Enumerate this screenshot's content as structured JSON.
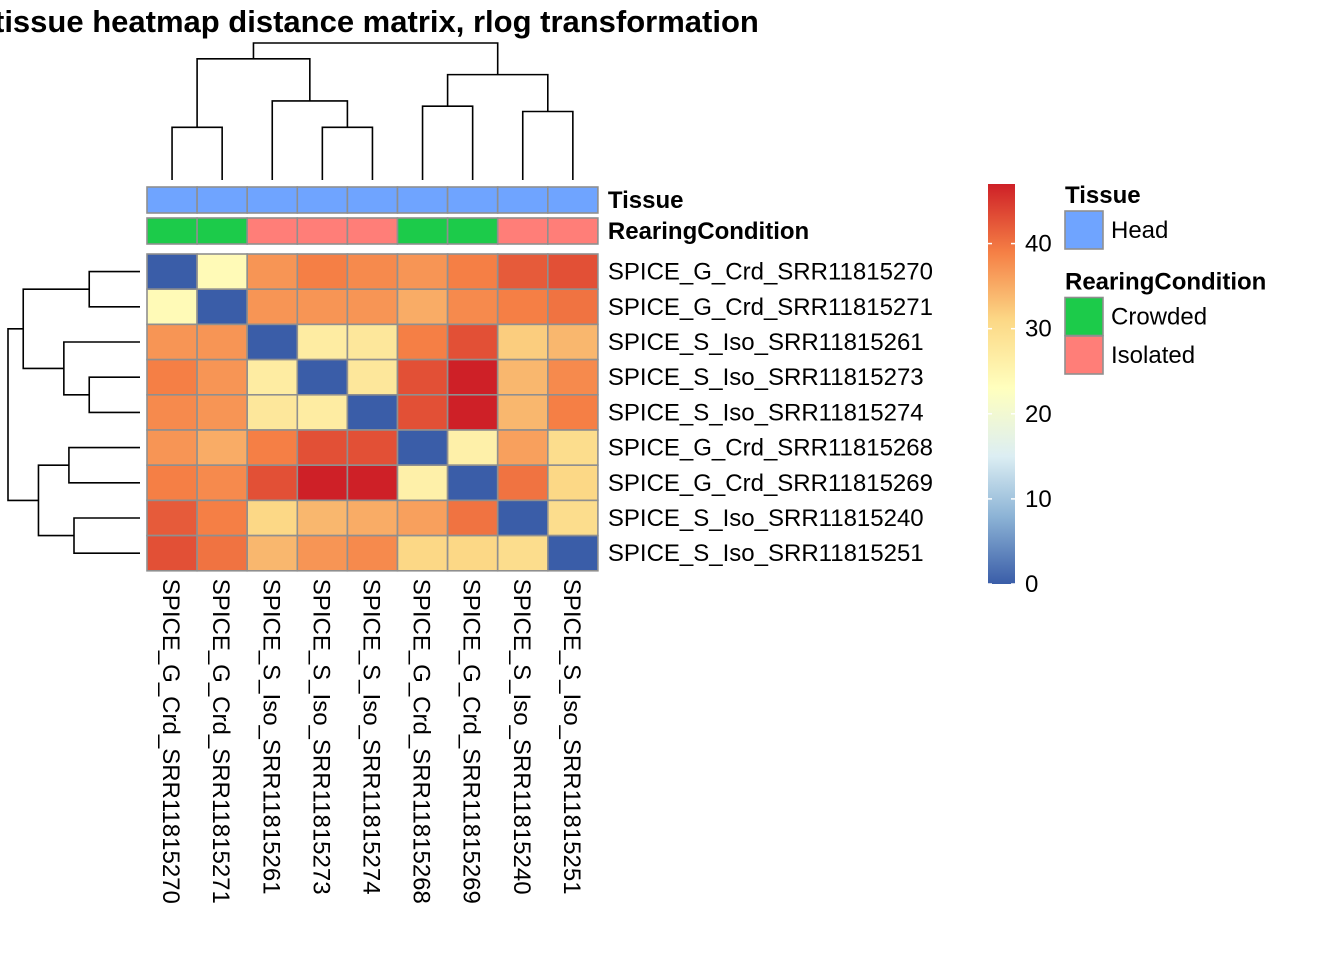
{
  "chart_data": {
    "type": "heatmap",
    "title": "tissue heatmap distance matrix, rlog transformation",
    "samples": [
      "SPICE_G_Crd_SRR11815270",
      "SPICE_G_Crd_SRR11815271",
      "SPICE_S_Iso_SRR11815261",
      "SPICE_S_Iso_SRR11815273",
      "SPICE_S_Iso_SRR11815274",
      "SPICE_G_Crd_SRR11815268",
      "SPICE_G_Crd_SRR11815269",
      "SPICE_S_Iso_SRR11815240",
      "SPICE_S_Iso_SRR11815251"
    ],
    "matrix": [
      [
        0,
        24,
        37,
        39,
        38,
        37,
        39,
        42,
        43
      ],
      [
        24,
        0,
        37,
        37,
        37,
        35,
        38,
        39,
        40
      ],
      [
        37,
        37,
        0,
        27,
        28,
        39,
        43,
        32,
        34
      ],
      [
        39,
        37,
        27,
        0,
        28,
        43,
        47,
        34,
        38
      ],
      [
        38,
        37,
        28,
        27,
        0,
        43,
        47,
        34,
        39
      ],
      [
        37,
        35,
        39,
        43,
        43,
        0,
        26,
        36,
        30
      ],
      [
        39,
        38,
        43,
        47,
        47,
        26,
        0,
        40,
        31
      ],
      [
        42,
        39,
        31,
        34,
        35,
        36,
        40,
        0,
        30
      ],
      [
        43,
        40,
        34,
        37,
        38,
        31,
        31,
        30,
        0
      ]
    ],
    "color_scale": {
      "domain": [
        0,
        47
      ],
      "stops": [
        {
          "v": 0,
          "c": "#3A5DA8"
        },
        {
          "v": 8,
          "c": "#8DB4D6"
        },
        {
          "v": 15,
          "c": "#DCEEF3"
        },
        {
          "v": 23,
          "c": "#FFFFBE"
        },
        {
          "v": 31,
          "c": "#FCD886"
        },
        {
          "v": 39,
          "c": "#F57F45"
        },
        {
          "v": 47,
          "c": "#CE2027"
        }
      ],
      "ticks": [
        0,
        10,
        20,
        30,
        40
      ]
    },
    "annotations": {
      "tracks": [
        {
          "name": "Tissue",
          "values": [
            "Head",
            "Head",
            "Head",
            "Head",
            "Head",
            "Head",
            "Head",
            "Head",
            "Head"
          ]
        },
        {
          "name": "RearingCondition",
          "values": [
            "Crowded",
            "Crowded",
            "Isolated",
            "Isolated",
            "Isolated",
            "Crowded",
            "Crowded",
            "Isolated",
            "Isolated"
          ]
        }
      ],
      "colors": {
        "Head": "#6FA4FF",
        "Crowded": "#1CCB4A",
        "Isolated": "#FF7E78"
      }
    },
    "legend": {
      "position": "right",
      "groups": [
        {
          "title": "Tissue",
          "items": [
            "Head"
          ]
        },
        {
          "title": "RearingCondition",
          "items": [
            "Crowded",
            "Isolated"
          ]
        }
      ]
    },
    "dendrogram": {
      "merges": [
        [
          -1,
          -2,
          1.0
        ],
        [
          -4,
          -5,
          1.0
        ],
        [
          -3,
          2,
          1.5
        ],
        [
          -8,
          -9,
          1.3
        ],
        [
          -6,
          -7,
          1.4
        ],
        [
          5,
          4,
          2.0
        ],
        [
          1,
          3,
          2.3
        ],
        [
          7,
          6,
          2.6
        ]
      ]
    }
  }
}
